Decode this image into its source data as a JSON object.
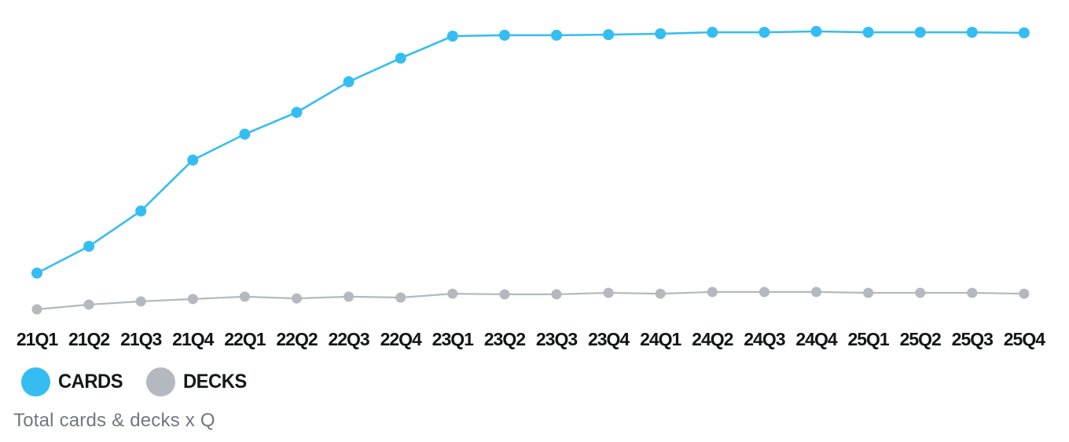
{
  "chart_data": {
    "type": "line",
    "title": "",
    "caption": "Total cards & decks x Q",
    "xlabel": "",
    "ylabel": "",
    "y_axis_visible": false,
    "grid": false,
    "legend_position": "bottom-left",
    "units_note": "no y-axis shown; values are relative estimates where the CARDS plateau = 100",
    "ylim": [
      0,
      105
    ],
    "categories": [
      "21Q1",
      "21Q2",
      "21Q3",
      "21Q4",
      "22Q1",
      "22Q2",
      "22Q3",
      "22Q4",
      "23Q1",
      "23Q2",
      "23Q3",
      "23Q4",
      "24Q1",
      "24Q2",
      "24Q3",
      "24Q4",
      "25Q1",
      "25Q2",
      "25Q3",
      "25Q4"
    ],
    "series": [
      {
        "name": "CARDS",
        "color": "#35bdf2",
        "values": [
          17.9,
          27.0,
          39.0,
          56.3,
          65.1,
          72.5,
          82.9,
          90.9,
          98.4,
          98.7,
          98.7,
          98.9,
          99.2,
          99.7,
          99.7,
          100.0,
          99.7,
          99.7,
          99.7,
          99.5
        ]
      },
      {
        "name": "DECKS",
        "color": "#b3b9bf",
        "values": [
          5.6,
          7.2,
          8.3,
          9.1,
          9.9,
          9.3,
          9.9,
          9.6,
          10.9,
          10.7,
          10.7,
          11.2,
          10.9,
          11.5,
          11.5,
          11.5,
          11.2,
          11.2,
          11.2,
          10.9
        ]
      }
    ],
    "text_color": "#121518",
    "caption_color": "#6e7781"
  }
}
